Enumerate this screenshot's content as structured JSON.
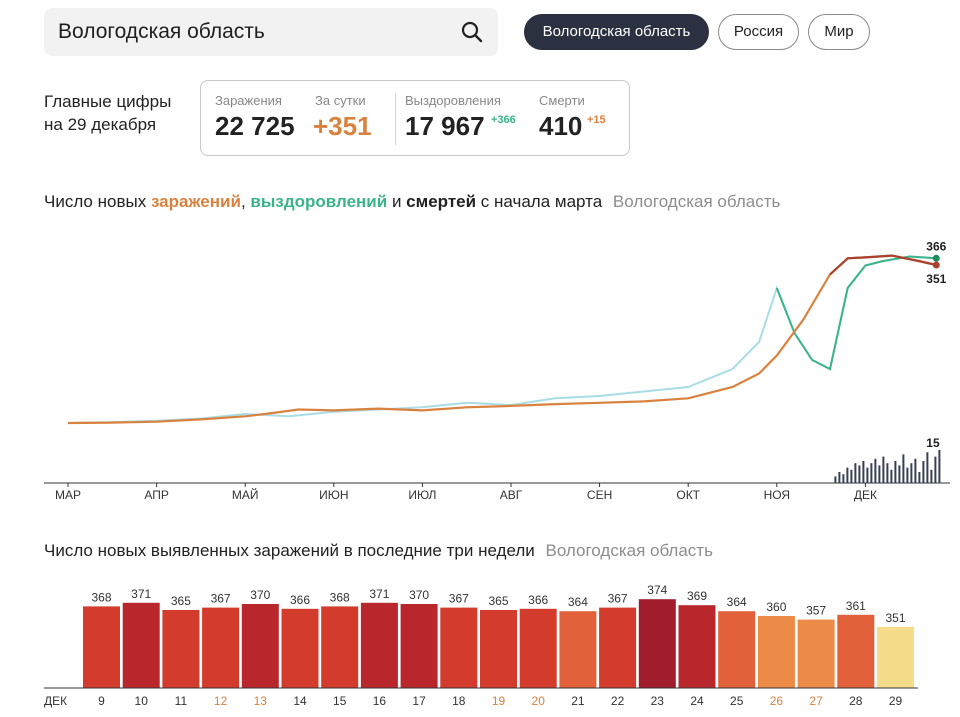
{
  "search": {
    "value": "Вологодская область"
  },
  "regions": [
    "Вологодская область",
    "Россия",
    "Мир"
  ],
  "headline": {
    "line1": "Главные цифры",
    "line2": "на 29 декабря"
  },
  "stats": {
    "infections": {
      "label": "Заражения",
      "value": "22 725"
    },
    "per_day": {
      "label": "За сутки",
      "value": "+351"
    },
    "recovered": {
      "label": "Выздоровления",
      "value": "17 967",
      "delta": "+366"
    },
    "deaths": {
      "label": "Смерти",
      "value": "410",
      "delta": "+15"
    }
  },
  "colors": {
    "infections": "#d9823f",
    "recoveries_raw": "#a9dde6",
    "recoveries_recent": "#3bb38b",
    "deaths_bars": "#3a3f55",
    "accent_dark": "#2b3140",
    "heat": [
      "#f5dc8a",
      "#f2b562",
      "#ec8a48",
      "#e2603a",
      "#d33b2c",
      "#b9262c",
      "#a11c2c"
    ]
  },
  "chart1": {
    "title_prefix": "Число новых",
    "title_inf": "заражений",
    "title_comma": ",",
    "title_rec": "выздоровлений",
    "title_and": "и",
    "title_dea": "смертей",
    "title_suffix": "с начала марта",
    "region": "Вологодская область",
    "end_label_recovered": "366",
    "end_label_infections": "351",
    "end_label_deaths": "15"
  },
  "chart_data": [
    {
      "type": "line",
      "months": [
        "МАР",
        "АПР",
        "МАЙ",
        "ИЮН",
        "ИЮЛ",
        "АВГ",
        "СЕН",
        "ОКТ",
        "НОЯ",
        "ДЕК"
      ],
      "series": [
        {
          "name": "заражений",
          "x_month_index": [
            0,
            0.5,
            1,
            1.5,
            2,
            2.3,
            2.6,
            3,
            3.5,
            4,
            4.5,
            5,
            5.5,
            6,
            6.5,
            7,
            7.5,
            7.8,
            8,
            8.3,
            8.6,
            8.8,
            9,
            9.3,
            9.6,
            9.8
          ],
          "values": [
            0,
            1,
            3,
            8,
            15,
            22,
            30,
            28,
            32,
            28,
            35,
            38,
            42,
            45,
            48,
            55,
            80,
            110,
            150,
            230,
            330,
            366,
            368,
            372,
            360,
            351
          ]
        },
        {
          "name": "выздоровлений",
          "x_month_index": [
            0,
            0.5,
            1,
            1.5,
            2,
            2.5,
            3,
            3.5,
            4,
            4.5,
            5,
            5.5,
            6,
            6.5,
            7,
            7.5,
            7.8,
            8,
            8.2,
            8.4,
            8.6,
            8.8,
            9,
            9.2,
            9.5,
            9.8
          ],
          "values": [
            0,
            2,
            5,
            10,
            20,
            15,
            25,
            30,
            35,
            45,
            40,
            55,
            60,
            70,
            80,
            120,
            180,
            300,
            200,
            140,
            120,
            300,
            350,
            360,
            370,
            366
          ]
        }
      ],
      "deaths_per_day_recent": [
        3,
        5,
        4,
        7,
        6,
        9,
        8,
        10,
        7,
        9,
        11,
        8,
        12,
        9,
        6,
        10,
        8,
        13,
        7,
        9,
        11,
        5,
        10,
        14,
        6,
        12,
        15
      ]
    },
    {
      "type": "bar",
      "title": "Число новых выявленных заражений в последние три недели",
      "region": "Вологодская область",
      "month_label": "ДЕК",
      "categories": [
        "9",
        "10",
        "11",
        "12",
        "13",
        "14",
        "15",
        "16",
        "17",
        "18",
        "19",
        "20",
        "21",
        "22",
        "23",
        "24",
        "25",
        "26",
        "27",
        "28",
        "29"
      ],
      "weekend": [
        false,
        false,
        false,
        true,
        true,
        false,
        false,
        false,
        false,
        false,
        true,
        true,
        false,
        false,
        false,
        false,
        false,
        true,
        true,
        false,
        false
      ],
      "values": [
        368,
        371,
        365,
        367,
        370,
        366,
        368,
        371,
        370,
        367,
        365,
        366,
        364,
        367,
        374,
        369,
        364,
        360,
        357,
        361,
        351
      ]
    }
  ]
}
